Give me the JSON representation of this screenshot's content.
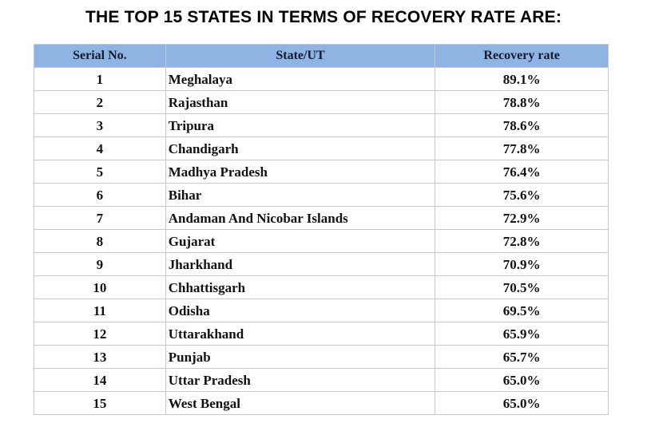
{
  "title": "THE TOP 15 STATES IN TERMS OF RECOVERY RATE ARE:",
  "colors": {
    "header_bg": "#8db4e2",
    "border": "#c9c9c9"
  },
  "table": {
    "headers": [
      "Serial No.",
      "State/UT",
      "Recovery rate"
    ],
    "rows": [
      [
        "1",
        "Meghalaya",
        "89.1%"
      ],
      [
        "2",
        "Rajasthan",
        "78.8%"
      ],
      [
        "3",
        "Tripura",
        "78.6%"
      ],
      [
        "4",
        "Chandigarh",
        "77.8%"
      ],
      [
        "5",
        "Madhya Pradesh",
        "76.4%"
      ],
      [
        "6",
        "Bihar",
        "75.6%"
      ],
      [
        "7",
        "Andaman And Nicobar Islands",
        "72.9%"
      ],
      [
        "8",
        "Gujarat",
        "72.8%"
      ],
      [
        "9",
        "Jharkhand",
        "70.9%"
      ],
      [
        "10",
        "Chhattisgarh",
        "70.5%"
      ],
      [
        "11",
        "Odisha",
        "69.5%"
      ],
      [
        "12",
        "Uttarakhand",
        "65.9%"
      ],
      [
        "13",
        "Punjab",
        "65.7%"
      ],
      [
        "14",
        "Uttar Pradesh",
        "65.0%"
      ],
      [
        "15",
        "West Bengal",
        "65.0%"
      ]
    ]
  }
}
